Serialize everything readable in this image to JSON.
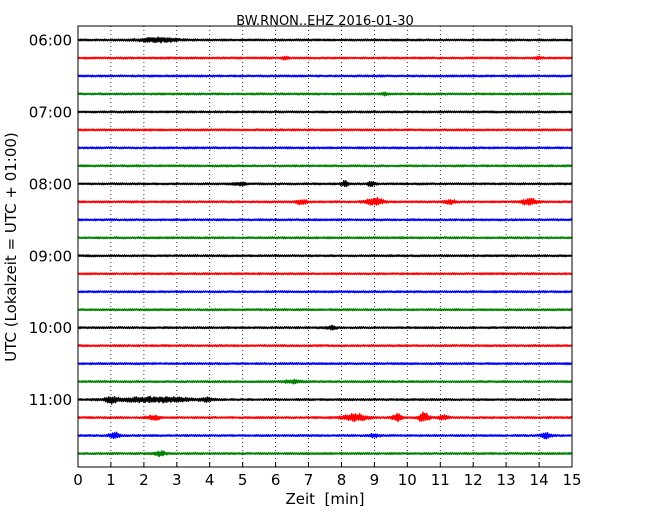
{
  "chart_data": {
    "type": "line",
    "subtype": "helicorder",
    "title": "BW.RNON..EHZ 2016-01-30",
    "xlabel": "Zeit  [min]",
    "ylabel": "UTC (Lokalzeit = UTC + 01:00)",
    "xlim": [
      0,
      15
    ],
    "x_ticks": [
      0,
      1,
      2,
      3,
      4,
      5,
      6,
      7,
      8,
      9,
      10,
      11,
      12,
      13,
      14,
      15
    ],
    "x_tick_labels": [
      "0",
      "1",
      "2",
      "3",
      "4",
      "5",
      "6",
      "7",
      "8",
      "9",
      "10",
      "11",
      "12",
      "13",
      "14",
      "15"
    ],
    "y_tick_labels": [
      "06:00",
      "07:00",
      "08:00",
      "09:00",
      "10:00",
      "11:00"
    ],
    "minutes_per_trace": 15,
    "grid": "vertical dotted at every minute",
    "trace_colors": [
      "#000000",
      "#ff0000",
      "#0000ff",
      "#008000"
    ],
    "traces": [
      {
        "start": "06:00",
        "events": [
          {
            "t": 2.4,
            "amp": 2.0,
            "dur": 1.2
          }
        ]
      },
      {
        "start": "06:15",
        "events": [
          {
            "t": 6.3,
            "amp": 1.5,
            "dur": 0.2
          },
          {
            "t": 14.0,
            "amp": 1.2,
            "dur": 0.2
          }
        ]
      },
      {
        "start": "06:30",
        "events": []
      },
      {
        "start": "06:45",
        "events": [
          {
            "t": 9.3,
            "amp": 1.0,
            "dur": 0.2
          }
        ]
      },
      {
        "start": "07:00",
        "events": []
      },
      {
        "start": "07:15",
        "events": []
      },
      {
        "start": "07:30",
        "events": []
      },
      {
        "start": "07:45",
        "events": []
      },
      {
        "start": "08:00",
        "events": [
          {
            "t": 4.9,
            "amp": 1.2,
            "dur": 0.4
          },
          {
            "t": 8.1,
            "amp": 3.5,
            "dur": 0.2
          },
          {
            "t": 8.9,
            "amp": 3.5,
            "dur": 0.2
          }
        ]
      },
      {
        "start": "08:15",
        "events": [
          {
            "t": 6.8,
            "amp": 2.5,
            "dur": 0.3
          },
          {
            "t": 9.0,
            "amp": 4.0,
            "dur": 0.5
          },
          {
            "t": 11.3,
            "amp": 2.0,
            "dur": 0.3
          },
          {
            "t": 13.7,
            "amp": 3.0,
            "dur": 0.5
          }
        ]
      },
      {
        "start": "08:30",
        "events": []
      },
      {
        "start": "08:45",
        "events": []
      },
      {
        "start": "09:00",
        "events": []
      },
      {
        "start": "09:15",
        "events": []
      },
      {
        "start": "09:30",
        "events": []
      },
      {
        "start": "09:45",
        "events": []
      },
      {
        "start": "10:00",
        "events": [
          {
            "t": 7.7,
            "amp": 1.5,
            "dur": 0.3
          }
        ]
      },
      {
        "start": "10:15",
        "events": []
      },
      {
        "start": "10:30",
        "events": []
      },
      {
        "start": "10:45",
        "events": [
          {
            "t": 6.5,
            "amp": 1.5,
            "dur": 0.5
          }
        ]
      },
      {
        "start": "11:00",
        "events": [
          {
            "t": 1.0,
            "amp": 3.0,
            "dur": 0.3
          },
          {
            "t": 2.3,
            "amp": 2.5,
            "dur": 2.3
          },
          {
            "t": 3.9,
            "amp": 1.5,
            "dur": 0.3
          }
        ]
      },
      {
        "start": "11:15",
        "events": [
          {
            "t": 2.3,
            "amp": 2.0,
            "dur": 0.4
          },
          {
            "t": 8.4,
            "amp": 3.5,
            "dur": 0.7
          },
          {
            "t": 9.7,
            "amp": 3.0,
            "dur": 0.3
          },
          {
            "t": 10.5,
            "amp": 5.0,
            "dur": 0.3
          },
          {
            "t": 11.1,
            "amp": 2.0,
            "dur": 0.3
          }
        ]
      },
      {
        "start": "11:30",
        "events": [
          {
            "t": 1.1,
            "amp": 3.0,
            "dur": 0.3
          },
          {
            "t": 9.0,
            "amp": 1.5,
            "dur": 0.3
          },
          {
            "t": 14.2,
            "amp": 3.0,
            "dur": 0.3
          }
        ]
      },
      {
        "start": "11:45",
        "events": [
          {
            "t": 2.5,
            "amp": 2.5,
            "dur": 0.3
          }
        ]
      }
    ]
  }
}
